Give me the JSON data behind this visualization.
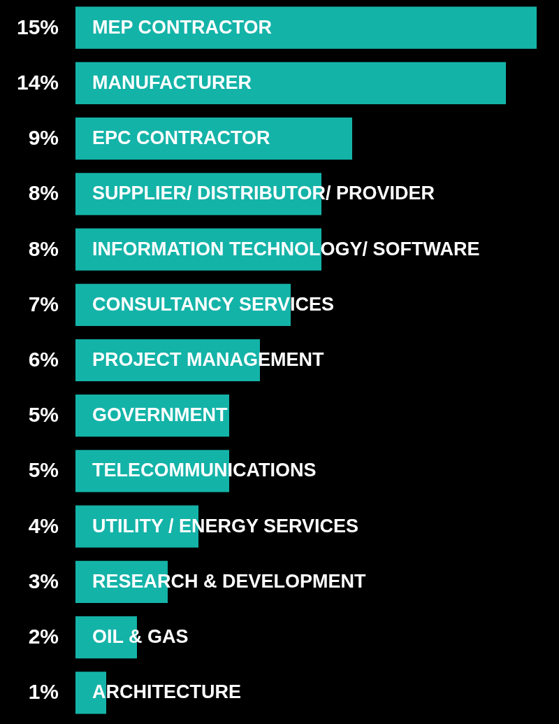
{
  "chart_data": {
    "type": "bar",
    "orientation": "horizontal",
    "categories": [
      "MEP CONTRACTOR",
      "MANUFACTURER",
      "EPC CONTRACTOR",
      "SUPPLIER/ DISTRIBUTOR/ PROVIDER",
      "INFORMATION TECHNOLOGY/ SOFTWARE",
      "CONSULTANCY SERVICES",
      "PROJECT MANAGEMENT",
      "GOVERNMENT",
      "TELECOMMUNICATIONS",
      "UTILITY / ENERGY SERVICES",
      "RESEARCH & DEVELOPMENT",
      "OIL & GAS",
      "ARCHITECTURE"
    ],
    "values": [
      15,
      14,
      9,
      8,
      8,
      7,
      6,
      5,
      5,
      4,
      3,
      2,
      1
    ],
    "value_labels": [
      "15%",
      "14%",
      "9%",
      "8%",
      "8%",
      "7%",
      "6%",
      "5%",
      "5%",
      "4%",
      "3%",
      "2%",
      "1%"
    ],
    "color": "#14b3a8"
  }
}
